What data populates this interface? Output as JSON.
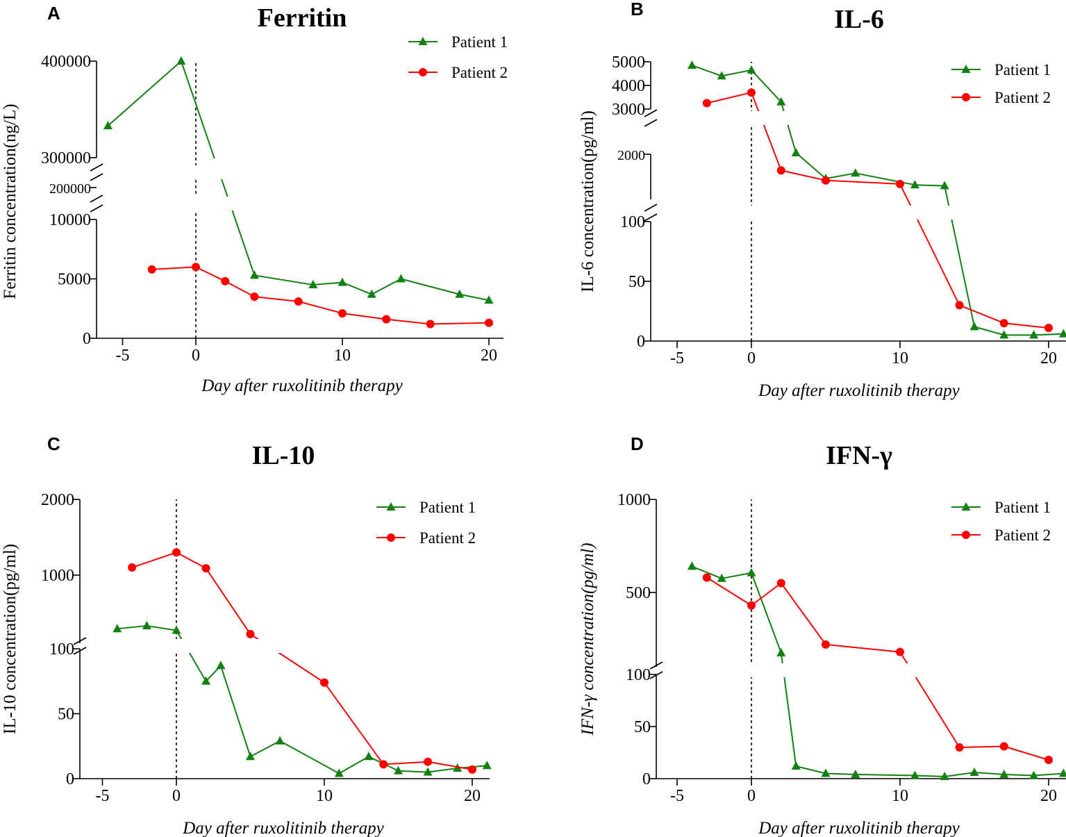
{
  "colors": {
    "patient1": "#138013",
    "patient2": "#ff0000"
  },
  "chart_data": [
    {
      "type": "line",
      "panel_letter": "A",
      "title": "Ferritin",
      "ylabel": "Ferritin concentration(ng/L)",
      "xlabel": "Day after  ruxolitinib therapy",
      "xlim": [
        -6.5,
        21
      ],
      "xticks": [
        -5,
        0,
        10,
        20
      ],
      "xtick_labels": [
        "-5",
        "0",
        "10",
        "20"
      ],
      "y_segments": [
        {
          "range": [
            0,
            10000
          ],
          "ticks": [
            0,
            5000,
            10000
          ],
          "tick_labels": [
            "0",
            "5000",
            "10000"
          ]
        },
        {
          "range": [
            200000,
            200000
          ],
          "ticks": [
            200000
          ],
          "tick_labels": [
            "200000"
          ]
        },
        {
          "range": [
            300000,
            400000
          ],
          "ticks": [
            300000,
            400000
          ],
          "tick_labels": [
            "300000",
            "400000"
          ]
        }
      ],
      "series": [
        {
          "name": "Patient 1",
          "marker": "triangle",
          "x": [
            -6,
            -1,
            4,
            8,
            10,
            12,
            14,
            18,
            20
          ],
          "y": [
            333000,
            400000,
            5300,
            4500,
            4700,
            3700,
            5000,
            3700,
            3200
          ]
        },
        {
          "name": "Patient 2",
          "marker": "circle",
          "x": [
            -3,
            0,
            2,
            4,
            7,
            10,
            13,
            16,
            20
          ],
          "y": [
            5800,
            6000,
            4800,
            3500,
            3100,
            2100,
            1600,
            1200,
            1300
          ]
        }
      ]
    },
    {
      "type": "line",
      "panel_letter": "B",
      "title": "IL-6",
      "ylabel": "IL-6  concentration(pg/ml)",
      "xlabel": "Day after  ruxolitinib therapy",
      "xlim": [
        -7,
        21.2
      ],
      "xticks": [
        -5,
        0,
        10,
        20
      ],
      "xtick_labels": [
        "-5",
        "0",
        "10",
        "20"
      ],
      "y_segments": [
        {
          "range": [
            0,
            100
          ],
          "ticks": [
            0,
            50,
            100
          ],
          "tick_labels": [
            "0",
            "50",
            "100"
          ]
        },
        {
          "range": [
            1000,
            2000
          ],
          "ticks": [
            2000
          ],
          "tick_labels": [
            "2000"
          ]
        },
        {
          "range": [
            3000,
            5000
          ],
          "ticks": [
            3000,
            4000,
            5000
          ],
          "tick_labels": [
            "3000",
            "4000",
            "5000"
          ]
        }
      ],
      "series": [
        {
          "name": "Patient 1",
          "marker": "triangle",
          "x": [
            -4,
            -2,
            0,
            2,
            3,
            5,
            7,
            11,
            13,
            15,
            17,
            19,
            21
          ],
          "y": [
            4850,
            4400,
            4650,
            3300,
            2030,
            1460,
            1580,
            1320,
            1300,
            12,
            5,
            5,
            6
          ]
        },
        {
          "name": "Patient 2",
          "marker": "circle",
          "x": [
            -3,
            0,
            2,
            5,
            10,
            14,
            17,
            20
          ],
          "y": [
            3250,
            3700,
            1640,
            1420,
            1340,
            30,
            15,
            11
          ]
        }
      ]
    },
    {
      "type": "line",
      "panel_letter": "C",
      "title": "IL-10",
      "ylabel": "IL-10  concentration(pg/ml)",
      "xlabel": "Day after  ruxolitinib therapy",
      "xlim": [
        -6.5,
        21.3
      ],
      "xticks": [
        -5,
        0,
        10,
        20
      ],
      "xtick_labels": [
        "-5",
        "0",
        "10",
        "20"
      ],
      "y_segments": [
        {
          "range": [
            0,
            100
          ],
          "ticks": [
            0,
            50,
            100
          ],
          "tick_labels": [
            "0",
            "50",
            "100"
          ]
        },
        {
          "range": [
            100,
            2000
          ],
          "ticks": [
            1000,
            2000
          ],
          "tick_labels": [
            "1000",
            "2000"
          ]
        }
      ],
      "series": [
        {
          "name": "Patient 1",
          "marker": "triangle",
          "x": [
            -4,
            -2,
            0,
            2,
            3,
            5,
            7,
            11,
            13,
            15,
            17,
            19,
            21
          ],
          "y": [
            290,
            330,
            270,
            75,
            87,
            17,
            29,
            4,
            17,
            6,
            5,
            8,
            10
          ]
        },
        {
          "name": "Patient 2",
          "marker": "circle",
          "x": [
            -3,
            0,
            2,
            5,
            10,
            14,
            17,
            20
          ],
          "y": [
            1100,
            1300,
            1090,
            220,
            74,
            11,
            13,
            7
          ]
        }
      ]
    },
    {
      "type": "line",
      "panel_letter": "D",
      "title": "IFN-γ",
      "ylabel": "IFN-γ concentration(pg/ml)",
      "xlabel": "Day after  ruxolitinib therapy",
      "xlim": [
        -7,
        21.2
      ],
      "xticks": [
        -5,
        0,
        10,
        20
      ],
      "xtick_labels": [
        "-5",
        "0",
        "10",
        "20"
      ],
      "y_segments": [
        {
          "range": [
            0,
            100
          ],
          "ticks": [
            0,
            50,
            100
          ],
          "tick_labels": [
            "0",
            "50",
            "100"
          ]
        },
        {
          "range": [
            100,
            1000
          ],
          "ticks": [
            500,
            1000
          ],
          "tick_labels": [
            "500",
            "1000"
          ]
        }
      ],
      "series": [
        {
          "name": "Patient 1",
          "marker": "triangle",
          "x": [
            -4,
            -2,
            0,
            2,
            3,
            5,
            7,
            11,
            13,
            15,
            17,
            19,
            21
          ],
          "y": [
            640,
            575,
            605,
            175,
            12,
            5,
            4,
            3,
            2,
            6,
            4,
            3,
            5
          ]
        },
        {
          "name": "Patient 2",
          "marker": "circle",
          "x": [
            -3,
            0,
            2,
            5,
            10,
            14,
            17,
            20
          ],
          "y": [
            580,
            430,
            550,
            220,
            180,
            30,
            31,
            18
          ]
        }
      ]
    }
  ]
}
